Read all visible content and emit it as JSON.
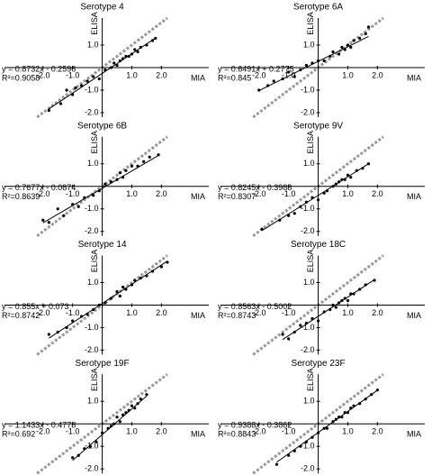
{
  "chart_data": [
    {
      "type": "scatter",
      "title": "Serotype 4",
      "x_label": "MIA",
      "y_label": "ELISA",
      "color": "#000000",
      "fit": {
        "label": "y = 0.8732x - 0.2596",
        "slope": 0.8732,
        "intercept": -0.2596
      },
      "r2": "R²=0.9058",
      "x": [
        -1.8,
        -1.4,
        -1.2,
        -1.0,
        -0.9,
        -0.7,
        -0.5,
        -0.3,
        -0.1,
        0.1,
        0.3,
        0.4,
        0.5,
        0.6,
        0.7,
        0.8,
        0.9,
        1.0,
        1.1,
        1.2,
        1.3,
        1.5,
        1.7,
        1.8
      ],
      "y": [
        -1.9,
        -1.6,
        -1.0,
        -1.2,
        -0.9,
        -0.8,
        -0.6,
        -0.4,
        -0.5,
        -0.1,
        0.0,
        0.2,
        0.1,
        0.3,
        0.4,
        0.5,
        0.5,
        0.6,
        0.8,
        0.7,
        0.9,
        1.0,
        1.2,
        1.3
      ],
      "xlim": [
        -3.3,
        3.6
      ],
      "ylim": [
        -2.2,
        2.2
      ],
      "xticks": [
        {
          "value": -2,
          "label": "-2.0"
        },
        {
          "value": -1,
          "label": "-1.0"
        },
        {
          "value": 1,
          "label": "1.0"
        },
        {
          "value": 2,
          "label": "2.0"
        }
      ],
      "yticks": [
        {
          "value": -2,
          "label": "-2.0"
        },
        {
          "value": -1,
          "label": "-1.0"
        },
        {
          "value": 1,
          "label": "1.0"
        }
      ]
    },
    {
      "type": "scatter",
      "title": "Serotype 6A",
      "x_label": "MIA",
      "y_label": "ELISA",
      "color": "#000000",
      "fit": {
        "label": "y = 0.6491x + 0.2775",
        "slope": 0.6491,
        "intercept": 0.2775
      },
      "r2": "R²=0.845",
      "x": [
        -2.0,
        -1.7,
        -1.5,
        -1.2,
        -1.0,
        -0.8,
        -0.6,
        -0.4,
        -0.2,
        0,
        0.2,
        0.4,
        0.5,
        0.7,
        0.8,
        0.9,
        1.0,
        1.1,
        1.2,
        1.4,
        1.6,
        1.7
      ],
      "y": [
        -1.0,
        -0.8,
        -0.6,
        -0.5,
        -0.2,
        -0.4,
        -0.1,
        0.1,
        0.2,
        0.3,
        0.3,
        0.5,
        0.7,
        0.6,
        0.9,
        0.8,
        1.0,
        0.9,
        1.2,
        1.3,
        1.5,
        1.8
      ],
      "xlim": [
        -3.3,
        3.6
      ],
      "ylim": [
        -2.2,
        2.2
      ],
      "xticks": [
        {
          "value": -2,
          "label": "-2.0"
        },
        {
          "value": -1,
          "label": "-1.0"
        },
        {
          "value": 1,
          "label": "1.0"
        },
        {
          "value": 2,
          "label": "2.0"
        }
      ],
      "yticks": [
        {
          "value": -2,
          "label": "-2.0"
        },
        {
          "value": -1,
          "label": "-1.0"
        },
        {
          "value": 1,
          "label": "1.0"
        }
      ]
    },
    {
      "type": "scatter",
      "title": "Serotype 6B",
      "x_label": "MIA",
      "y_label": "ELISA",
      "color": "#000000",
      "fit": {
        "label": "y = 0.7677x - 0.0874",
        "slope": 0.7677,
        "intercept": -0.0874
      },
      "r2": "R²=0.8639",
      "x": [
        -2.0,
        -1.8,
        -1.5,
        -1.3,
        -1.0,
        -0.8,
        -0.6,
        -0.3,
        -0.1,
        0.1,
        0.3,
        0.5,
        0.6,
        0.7,
        0.8,
        1.0,
        1.2,
        1.4,
        1.6,
        1.9
      ],
      "y": [
        -1.5,
        -1.6,
        -1.0,
        -1.3,
        -0.8,
        -0.9,
        -0.5,
        -0.4,
        -0.2,
        0.1,
        0.2,
        0.3,
        0.6,
        0.4,
        0.7,
        0.9,
        0.9,
        1.1,
        1.3,
        1.4
      ],
      "xlim": [
        -3.3,
        3.6
      ],
      "ylim": [
        -2.2,
        2.2
      ],
      "xticks": [
        {
          "value": -2,
          "label": "-2.0"
        },
        {
          "value": -1,
          "label": "-1.0"
        },
        {
          "value": 1,
          "label": "1.0"
        },
        {
          "value": 2,
          "label": "2.0"
        }
      ],
      "yticks": [
        {
          "value": -2,
          "label": "-2.0"
        },
        {
          "value": -1,
          "label": "-1.0"
        },
        {
          "value": 1,
          "label": "1.0"
        }
      ]
    },
    {
      "type": "scatter",
      "title": "Serotype 9V",
      "x_label": "MIA",
      "y_label": "ELISA",
      "color": "#000000",
      "fit": {
        "label": "y = 0.8245x - 0.3988",
        "slope": 0.8245,
        "intercept": -0.3988
      },
      "r2": "R²=0.8307",
      "x": [
        -1.9,
        -1.3,
        -1.0,
        -0.8,
        -0.6,
        -0.4,
        -0.2,
        0,
        0.2,
        0.3,
        0.5,
        0.6,
        0.7,
        0.8,
        0.9,
        1.0,
        1.1,
        1.3,
        1.5,
        1.7
      ],
      "y": [
        -1.9,
        -1.5,
        -1.3,
        -1.2,
        -0.9,
        -0.7,
        -0.5,
        -0.6,
        -0.3,
        -0.2,
        0.0,
        0.1,
        0.2,
        0.3,
        0.3,
        0.5,
        0.4,
        0.7,
        0.8,
        1.0
      ],
      "xlim": [
        -3.3,
        3.6
      ],
      "ylim": [
        -2.2,
        2.2
      ],
      "xticks": [
        {
          "value": -2,
          "label": "-2.0"
        },
        {
          "value": -1,
          "label": "-1.0"
        },
        {
          "value": 1,
          "label": "1.0"
        },
        {
          "value": 2,
          "label": "2.0"
        }
      ],
      "yticks": [
        {
          "value": -2,
          "label": "-2.0"
        },
        {
          "value": -1,
          "label": "-1.0"
        },
        {
          "value": 1,
          "label": "1.0"
        }
      ]
    },
    {
      "type": "scatter",
      "title": "Serotype 14",
      "x_label": "MIA",
      "y_label": "ELISA",
      "color": "#000000",
      "fit": {
        "label": "y = 0.855x + 0.073",
        "slope": 0.855,
        "intercept": 0.073
      },
      "r2": "R²=0.8742",
      "x": [
        -1.8,
        -1.5,
        -1.2,
        -1.0,
        -0.7,
        -0.5,
        -0.3,
        -0.1,
        0.1,
        0.3,
        0.5,
        0.6,
        0.7,
        0.8,
        1.0,
        1.1,
        1.3,
        1.5,
        1.7,
        2.0,
        2.2
      ],
      "y": [
        -1.3,
        -1.2,
        -1.0,
        -0.7,
        -0.5,
        -0.4,
        -0.2,
        0.0,
        0.1,
        0.3,
        0.6,
        0.4,
        0.8,
        0.7,
        0.9,
        1.1,
        1.2,
        1.3,
        1.5,
        1.7,
        1.9
      ],
      "xlim": [
        -3.3,
        3.6
      ],
      "ylim": [
        -2.2,
        2.2
      ],
      "xticks": [
        {
          "value": -2,
          "label": "-2.0"
        },
        {
          "value": -1,
          "label": "-1.0"
        },
        {
          "value": 1,
          "label": "1.0"
        },
        {
          "value": 2,
          "label": "2.0"
        }
      ],
      "yticks": [
        {
          "value": -2,
          "label": "-2.0"
        },
        {
          "value": -1,
          "label": "-1.0"
        },
        {
          "value": 1,
          "label": "1.0"
        }
      ]
    },
    {
      "type": "scatter",
      "title": "Serotype 18C",
      "x_label": "MIA",
      "y_label": "ELISA",
      "color": "#000000",
      "fit": {
        "label": "y = 0.8563x - 0.5002",
        "slope": 0.8563,
        "intercept": -0.5002
      },
      "r2": "R²=0.8743",
      "x": [
        -1.2,
        -1.0,
        -0.8,
        -0.6,
        -0.4,
        -0.2,
        0,
        0.2,
        0.4,
        0.5,
        0.6,
        0.7,
        0.8,
        0.9,
        1.0,
        1.1,
        1.2,
        1.4,
        1.6,
        1.9
      ],
      "y": [
        -1.3,
        -1.5,
        -1.2,
        -0.9,
        -0.8,
        -0.6,
        -0.7,
        -0.3,
        -0.2,
        0.0,
        -0.1,
        0.1,
        0.2,
        0.3,
        0.2,
        0.5,
        0.5,
        0.7,
        0.9,
        1.1
      ],
      "xlim": [
        -3.3,
        3.6
      ],
      "ylim": [
        -2.2,
        2.2
      ],
      "xticks": [
        {
          "value": -2,
          "label": "-2.0"
        },
        {
          "value": -1,
          "label": "-1.0"
        },
        {
          "value": 1,
          "label": "1.0"
        },
        {
          "value": 2,
          "label": "2.0"
        }
      ],
      "yticks": [
        {
          "value": -2,
          "label": "-2.0"
        },
        {
          "value": -1,
          "label": "-1.0"
        },
        {
          "value": 1,
          "label": "1.0"
        }
      ]
    },
    {
      "type": "scatter",
      "title": "Serotype 19F",
      "x_label": "MIA",
      "y_label": "ELISA",
      "color": "#000000",
      "fit": {
        "label": "y = 1.1433x - 0.4778",
        "slope": 1.1433,
        "intercept": -0.4778
      },
      "r2": "R²=0.692",
      "x": [
        -1.0,
        -0.8,
        -0.6,
        -0.4,
        -0.2,
        0,
        0.2,
        0.3,
        0.4,
        0.5,
        0.6,
        0.7,
        0.8,
        0.9,
        1.0,
        1.1,
        1.2,
        1.3,
        1.5
      ],
      "y": [
        -1.5,
        -1.4,
        -1.1,
        -1.0,
        -0.8,
        -0.4,
        -0.2,
        -0.1,
        0.0,
        0.3,
        0.1,
        0.4,
        0.5,
        0.6,
        0.8,
        0.7,
        0.9,
        1.1,
        1.3
      ],
      "xlim": [
        -3.3,
        3.6
      ],
      "ylim": [
        -2.2,
        2.2
      ],
      "xticks": [
        {
          "value": -2,
          "label": "-2.0"
        },
        {
          "value": -1,
          "label": "-1.0"
        },
        {
          "value": 1,
          "label": "1.0"
        },
        {
          "value": 2,
          "label": "2.0"
        }
      ],
      "yticks": [
        {
          "value": -2,
          "label": "-2.0"
        },
        {
          "value": -1,
          "label": "-1.0"
        },
        {
          "value": 1,
          "label": "1.0"
        }
      ]
    },
    {
      "type": "scatter",
      "title": "Serotype 23F",
      "x_label": "MIA",
      "y_label": "ELISA",
      "color": "#000000",
      "fit": {
        "label": "y = 0.9388x - 0.3862",
        "slope": 0.9388,
        "intercept": -0.3862
      },
      "r2": "R²=0.8843",
      "x": [
        -1.4,
        -1.0,
        -0.8,
        -0.6,
        -0.4,
        -0.2,
        0,
        0.2,
        0.3,
        0.5,
        0.6,
        0.7,
        0.8,
        0.9,
        1.0,
        1.1,
        1.2,
        1.4,
        1.6,
        1.8,
        2.0
      ],
      "y": [
        -1.8,
        -1.4,
        -1.2,
        -1.0,
        -0.8,
        -0.6,
        -0.4,
        -0.2,
        -0.2,
        0.1,
        0.2,
        0.3,
        0.3,
        0.5,
        0.5,
        0.7,
        0.8,
        0.9,
        1.1,
        1.3,
        1.5
      ],
      "xlim": [
        -3.3,
        3.6
      ],
      "ylim": [
        -2.2,
        2.2
      ],
      "xticks": [
        {
          "value": -2,
          "label": "-2.0"
        },
        {
          "value": -1,
          "label": "-1.0"
        },
        {
          "value": 1,
          "label": "1.0"
        },
        {
          "value": 2,
          "label": "2.0"
        }
      ],
      "yticks": [
        {
          "value": -2,
          "label": "-2.0"
        },
        {
          "value": -1,
          "label": "-1.0"
        },
        {
          "value": 1,
          "label": "1.0"
        }
      ]
    }
  ]
}
